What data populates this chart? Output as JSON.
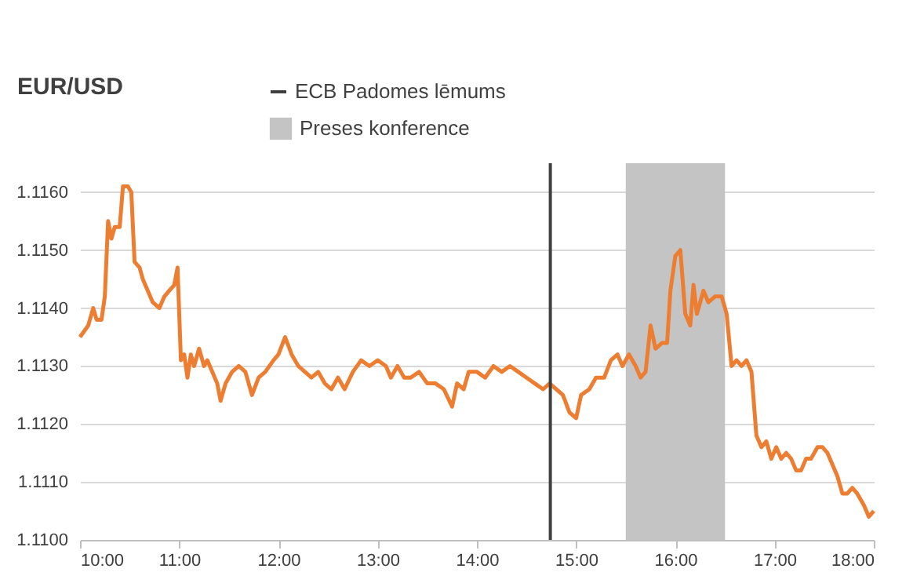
{
  "chart_data": {
    "type": "line",
    "title": "EUR/USD",
    "x": [
      10.0,
      10.083,
      10.133,
      10.167,
      10.217,
      10.25,
      10.283,
      10.317,
      10.35,
      10.4,
      10.433,
      10.483,
      10.517,
      10.55,
      10.6,
      10.633,
      10.683,
      10.733,
      10.8,
      10.85,
      10.9,
      10.95,
      10.983,
      11.017,
      11.05,
      11.083,
      11.117,
      11.15,
      11.2,
      11.25,
      11.283,
      11.333,
      11.383,
      11.417,
      11.467,
      11.533,
      11.6,
      11.667,
      11.733,
      11.8,
      11.867,
      11.95,
      12.0,
      12.067,
      12.133,
      12.2,
      12.267,
      12.333,
      12.4,
      12.467,
      12.533,
      12.6,
      12.667,
      12.75,
      12.833,
      12.917,
      13.0,
      13.083,
      13.133,
      13.2,
      13.267,
      13.333,
      13.417,
      13.5,
      13.583,
      13.667,
      13.75,
      13.8,
      13.867,
      13.917,
      14.0,
      14.083,
      14.167,
      14.25,
      14.333,
      14.417,
      14.5,
      14.583,
      14.667,
      14.733,
      14.8,
      14.867,
      14.933,
      15.0,
      15.05,
      15.133,
      15.2,
      15.283,
      15.35,
      15.417,
      15.467,
      15.533,
      15.6,
      15.65,
      15.7,
      15.75,
      15.8,
      15.867,
      15.917,
      15.95,
      16.0,
      16.05,
      16.1,
      16.15,
      16.183,
      16.217,
      16.283,
      16.333,
      16.4,
      16.467,
      16.517,
      16.567,
      16.617,
      16.667,
      16.717,
      16.767,
      16.817,
      16.867,
      16.917,
      16.967,
      17.017,
      17.067,
      17.117,
      17.167,
      17.217,
      17.267,
      17.317,
      17.367,
      17.433,
      17.483,
      17.533,
      17.583,
      17.633,
      17.683,
      17.733,
      17.783,
      17.833,
      17.9,
      17.95,
      18.0
    ],
    "series": [
      {
        "color": "#ed7d31",
        "values": [
          1.1135,
          1.1137,
          1.114,
          1.1138,
          1.1138,
          1.1142,
          1.1155,
          1.1152,
          1.1154,
          1.1154,
          1.1161,
          1.1161,
          1.116,
          1.1148,
          1.1147,
          1.1145,
          1.1143,
          1.1141,
          1.114,
          1.1142,
          1.1143,
          1.1144,
          1.1147,
          1.1131,
          1.1132,
          1.1128,
          1.1132,
          1.113,
          1.1133,
          1.113,
          1.1131,
          1.1129,
          1.1127,
          1.1124,
          1.1127,
          1.1129,
          1.113,
          1.1129,
          1.1125,
          1.1128,
          1.1129,
          1.1131,
          1.1132,
          1.1135,
          1.1132,
          1.113,
          1.1129,
          1.1128,
          1.1129,
          1.1127,
          1.1126,
          1.1128,
          1.1126,
          1.1129,
          1.1131,
          1.113,
          1.1131,
          1.113,
          1.1128,
          1.113,
          1.1128,
          1.1128,
          1.1129,
          1.1127,
          1.1127,
          1.1126,
          1.1123,
          1.1127,
          1.1126,
          1.1129,
          1.1129,
          1.1128,
          1.113,
          1.1129,
          1.113,
          1.1129,
          1.1128,
          1.1127,
          1.1126,
          1.1127,
          1.1126,
          1.1125,
          1.1122,
          1.1121,
          1.1125,
          1.1126,
          1.1128,
          1.1128,
          1.1131,
          1.1132,
          1.113,
          1.1132,
          1.113,
          1.1128,
          1.1129,
          1.1137,
          1.1133,
          1.1134,
          1.1134,
          1.1143,
          1.1149,
          1.115,
          1.1139,
          1.1137,
          1.1144,
          1.1139,
          1.1143,
          1.1141,
          1.1142,
          1.1142,
          1.1139,
          1.113,
          1.1131,
          1.113,
          1.1131,
          1.1129,
          1.1118,
          1.1116,
          1.1117,
          1.1114,
          1.1116,
          1.1114,
          1.1115,
          1.1114,
          1.1112,
          1.1112,
          1.1114,
          1.1114,
          1.1116,
          1.1116,
          1.1115,
          1.1113,
          1.1111,
          1.1108,
          1.1108,
          1.1109,
          1.1108,
          1.1106,
          1.1104,
          1.1105
        ]
      }
    ],
    "xlim": [
      10,
      18
    ],
    "xticks": [
      {
        "value": 10,
        "label": "10:00"
      },
      {
        "value": 11,
        "label": "11:00"
      },
      {
        "value": 12,
        "label": "12:00"
      },
      {
        "value": 13,
        "label": "13:00"
      },
      {
        "value": 14,
        "label": "14:00"
      },
      {
        "value": 15,
        "label": "15:00"
      },
      {
        "value": 16,
        "label": "16:00"
      },
      {
        "value": 17,
        "label": "17:00"
      },
      {
        "value": 18,
        "label": "18:00"
      }
    ],
    "ylim": [
      1.11,
      1.1165
    ],
    "yticks": [
      {
        "value": 1.11,
        "label": "1.1100"
      },
      {
        "value": 1.111,
        "label": "1.1110"
      },
      {
        "value": 1.112,
        "label": "1.1120"
      },
      {
        "value": 1.113,
        "label": "1.1130"
      },
      {
        "value": 1.114,
        "label": "1.1140"
      },
      {
        "value": 1.115,
        "label": "1.1150"
      },
      {
        "value": 1.116,
        "label": "1.1160"
      }
    ],
    "ref_lines": [
      {
        "axis": "x",
        "value": 14.74,
        "label": "ECB Padomes lēmums",
        "color": "#404040"
      }
    ],
    "bands": [
      {
        "axis": "x",
        "from": 15.5,
        "to": 16.5,
        "label": "Preses konference",
        "color": "#c4c4c4"
      }
    ],
    "grid": "y",
    "legend": "top",
    "marker": "none",
    "line_style": "solid"
  }
}
